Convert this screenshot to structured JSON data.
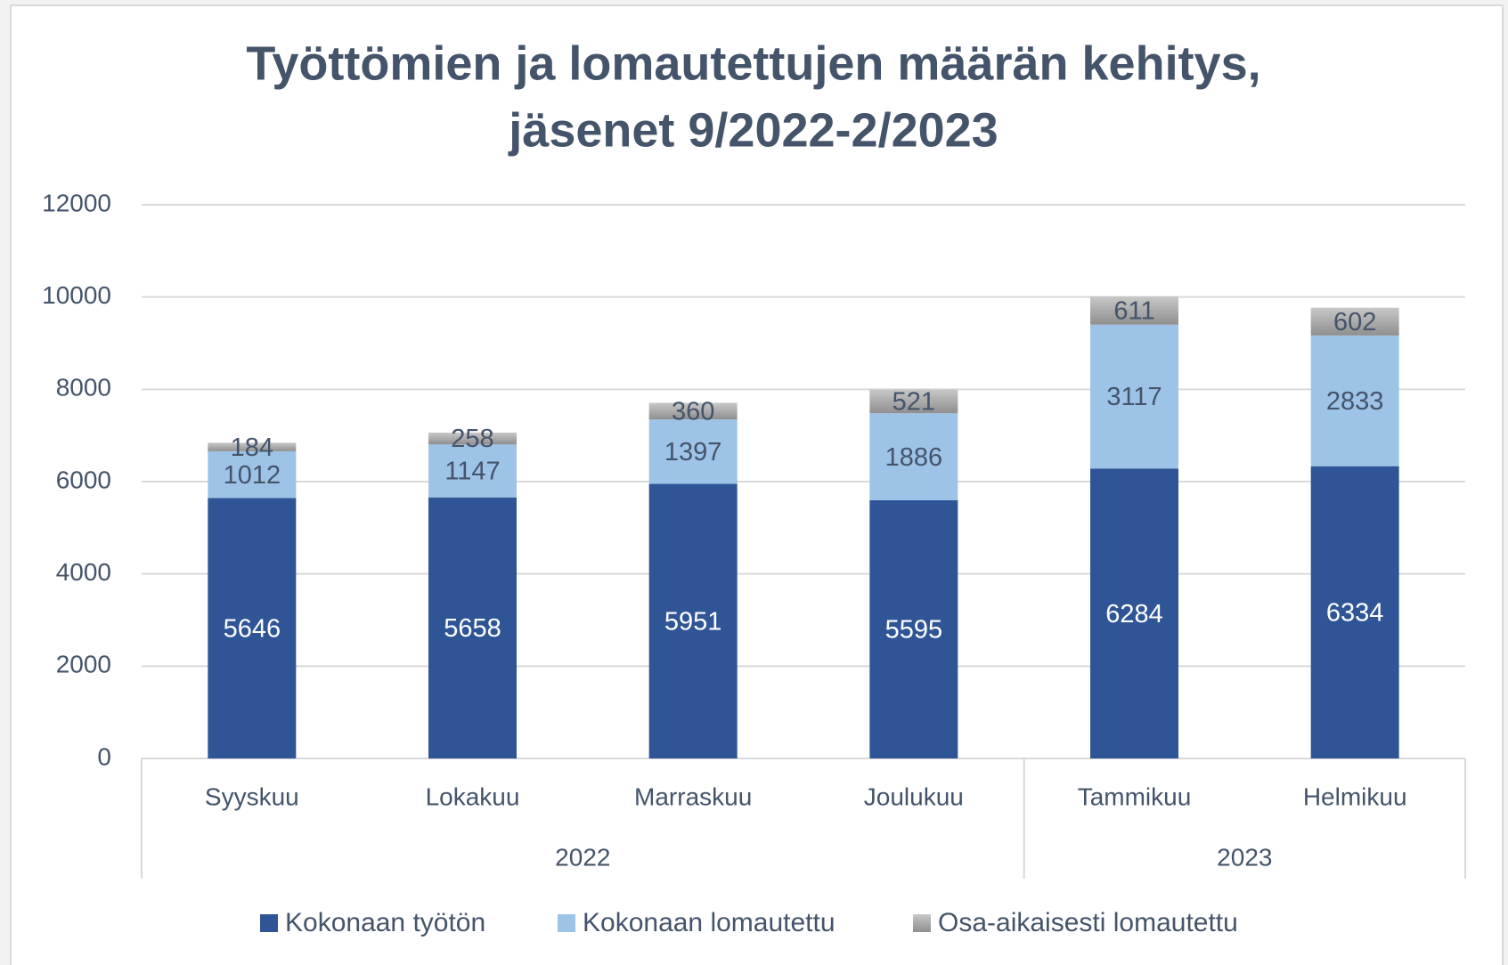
{
  "chart_data": {
    "type": "stacked_bar",
    "title": [
      "Työttömien ja lomautettujen määrän kehitys,",
      "jäsenet 9/2022-2/2023"
    ],
    "categories": [
      "Syyskuu",
      "Lokakuu",
      "Marraskuu",
      "Joulukuu",
      "Tammikuu",
      "Helmikuu"
    ],
    "groups": [
      {
        "label": "2022",
        "span": 4
      },
      {
        "label": "2023",
        "span": 2
      }
    ],
    "series": [
      {
        "name": "Kokonaan työtön",
        "color": "#2f5597",
        "label_color": "#ffffff",
        "values": [
          5646,
          5658,
          5951,
          5595,
          6284,
          6334
        ]
      },
      {
        "name": "Kokonaan lomautettu",
        "color": "#9dc3e6",
        "label_color": "#44546a",
        "values": [
          1012,
          1147,
          1397,
          1886,
          3117,
          2833
        ]
      },
      {
        "name": "Osa-aikaisesti lomautettu",
        "color": "#a5a5a5",
        "label_color": "#44546a",
        "values": [
          184,
          258,
          360,
          521,
          611,
          602
        ]
      }
    ],
    "ylim": [
      0,
      12000
    ],
    "yticks": [
      0,
      2000,
      4000,
      6000,
      8000,
      10000,
      12000
    ],
    "grid": true,
    "legend": "bottom"
  }
}
